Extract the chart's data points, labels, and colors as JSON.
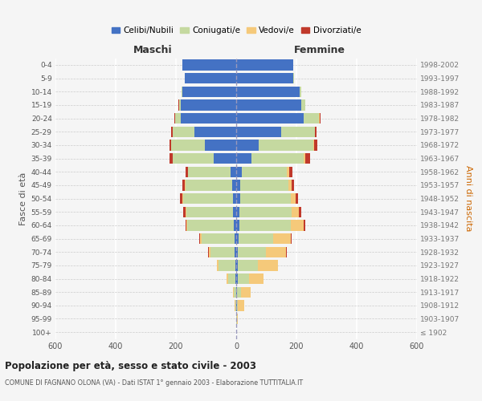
{
  "age_groups": [
    "100+",
    "95-99",
    "90-94",
    "85-89",
    "80-84",
    "75-79",
    "70-74",
    "65-69",
    "60-64",
    "55-59",
    "50-54",
    "45-49",
    "40-44",
    "35-39",
    "30-34",
    "25-29",
    "20-24",
    "15-19",
    "10-14",
    "5-9",
    "0-4"
  ],
  "birth_years": [
    "≤ 1902",
    "1903-1907",
    "1908-1912",
    "1913-1917",
    "1918-1922",
    "1923-1927",
    "1928-1932",
    "1933-1937",
    "1938-1942",
    "1943-1947",
    "1948-1952",
    "1953-1957",
    "1958-1962",
    "1963-1967",
    "1968-1972",
    "1973-1977",
    "1978-1982",
    "1983-1987",
    "1988-1992",
    "1993-1997",
    "1998-2002"
  ],
  "males": {
    "celibe": [
      0,
      0,
      1,
      1,
      2,
      3,
      5,
      5,
      8,
      10,
      12,
      14,
      20,
      75,
      105,
      140,
      185,
      185,
      180,
      170,
      180
    ],
    "coniugato": [
      0,
      1,
      3,
      8,
      25,
      55,
      80,
      110,
      155,
      155,
      165,
      155,
      140,
      135,
      110,
      70,
      18,
      5,
      2,
      1,
      0
    ],
    "vedovo": [
      0,
      0,
      1,
      3,
      5,
      5,
      5,
      5,
      3,
      2,
      2,
      2,
      1,
      1,
      1,
      1,
      1,
      0,
      0,
      0,
      0
    ],
    "divorziato": [
      0,
      0,
      0,
      0,
      1,
      2,
      3,
      3,
      3,
      8,
      8,
      8,
      8,
      10,
      6,
      5,
      2,
      1,
      0,
      0,
      0
    ]
  },
  "females": {
    "nubile": [
      0,
      1,
      2,
      3,
      4,
      5,
      6,
      8,
      10,
      10,
      12,
      14,
      18,
      50,
      75,
      150,
      225,
      215,
      210,
      190,
      190
    ],
    "coniugata": [
      0,
      1,
      4,
      12,
      38,
      68,
      92,
      115,
      170,
      175,
      170,
      160,
      150,
      175,
      180,
      110,
      50,
      14,
      5,
      2,
      0
    ],
    "vedova": [
      0,
      4,
      20,
      32,
      48,
      65,
      68,
      58,
      45,
      22,
      15,
      10,
      8,
      5,
      3,
      2,
      1,
      0,
      0,
      0,
      0
    ],
    "divorziata": [
      0,
      0,
      0,
      0,
      1,
      1,
      2,
      2,
      5,
      8,
      8,
      8,
      10,
      15,
      10,
      5,
      3,
      1,
      0,
      0,
      0
    ]
  },
  "colors": {
    "celibe": "#4472c4",
    "coniugato": "#c5d9a0",
    "vedovo": "#f5c97a",
    "divorziato": "#c0392b"
  },
  "title": "Popolazione per età, sesso e stato civile - 2003",
  "subtitle": "COMUNE DI FAGNANO OLONA (VA) - Dati ISTAT 1° gennaio 2003 - Elaborazione TUTTITALIA.IT",
  "xlabel_left": "Maschi",
  "xlabel_right": "Femmine",
  "ylabel_left": "Fasce di età",
  "ylabel_right": "Anni di nascita",
  "xlim": 600,
  "legend_labels": [
    "Celibi/Nubili",
    "Coniugati/e",
    "Vedovi/e",
    "Divorziati/e"
  ],
  "bg_color": "#f5f5f5"
}
